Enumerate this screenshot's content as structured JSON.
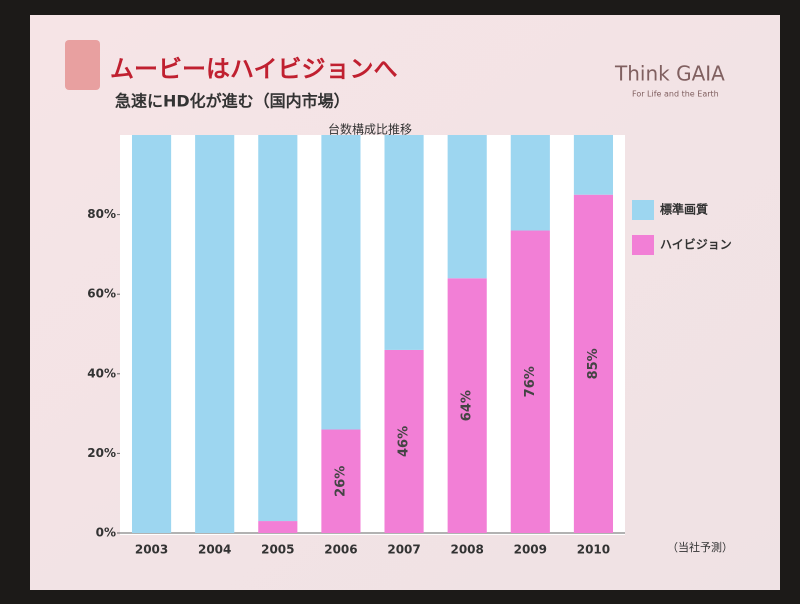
{
  "slide": {
    "title": "ムービーはハイビジョンへ",
    "subtitle": "急速にHD化が進む（国内市場）",
    "logo": "Think GAIA",
    "tagline": "For Life and the Earth"
  },
  "chart_data": {
    "type": "stacked-bar",
    "title": "台数構成比推移",
    "note": "（当社予測）",
    "categories": [
      "2003",
      "2004",
      "2005",
      "2006",
      "2007",
      "2008",
      "2009",
      "2010"
    ],
    "series": [
      {
        "name": "ハイビジョン",
        "color": "#f27fd6",
        "values": [
          0,
          0,
          3,
          26,
          46,
          64,
          76,
          85
        ],
        "value_labels": [
          null,
          null,
          null,
          "26%",
          "46%",
          "64%",
          "76%",
          "85%"
        ]
      },
      {
        "name": "標準画質",
        "color": "#9dd6f0",
        "values": [
          100,
          100,
          97,
          74,
          54,
          36,
          24,
          15
        ]
      }
    ],
    "ylim": [
      0,
      100
    ],
    "yticks": [
      {
        "value": 0,
        "label": "0%"
      },
      {
        "value": 20,
        "label": "20%"
      },
      {
        "value": 40,
        "label": "40%"
      },
      {
        "value": 60,
        "label": "60%"
      },
      {
        "value": 80,
        "label": "80%"
      }
    ],
    "grid": false
  }
}
